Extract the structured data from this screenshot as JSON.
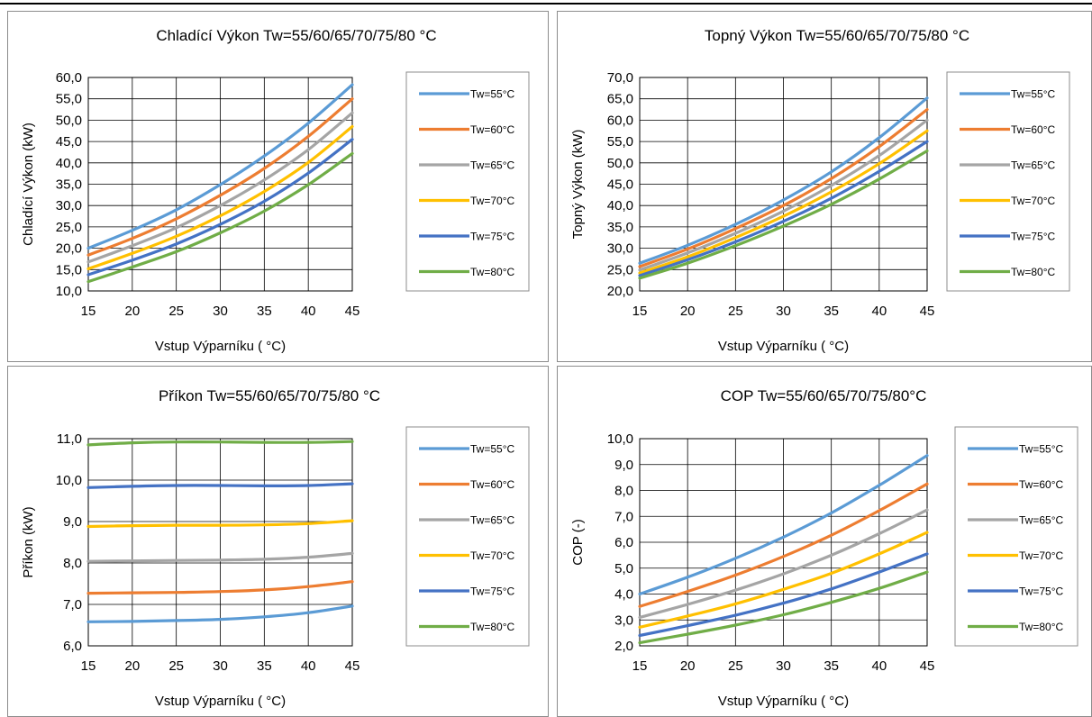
{
  "chart_data": [
    {
      "type": "line",
      "title": "Chladící Výkon Tw=55/60/65/70/75/80  °C",
      "xlabel": "Vstup Výparníku (  °C)",
      "ylabel": "Chladící Výkon (kW)",
      "xlim": [
        15,
        45
      ],
      "ylim": [
        10,
        60
      ],
      "x_ticks": [
        "15",
        "20",
        "25",
        "30",
        "35",
        "40",
        "45"
      ],
      "y_ticks": [
        "10,0",
        "15,0",
        "20,0",
        "25,0",
        "30,0",
        "35,0",
        "40,0",
        "45,0",
        "50,0",
        "55,0",
        "60,0"
      ],
      "grid": true,
      "legend_position": "right",
      "x": [
        15,
        20,
        25,
        30,
        35,
        40,
        45
      ],
      "series": [
        {
          "name": "Tw=55°C",
          "color": "#5b9bd5",
          "values": [
            20.0,
            24.2,
            29.0,
            34.9,
            41.6,
            49.3,
            58.3
          ]
        },
        {
          "name": "Tw=60°C",
          "color": "#ed7d31",
          "values": [
            18.4,
            22.3,
            26.9,
            32.4,
            38.7,
            46.2,
            55.0
          ]
        },
        {
          "name": "Tw=65°C",
          "color": "#a5a5a5",
          "values": [
            16.8,
            20.6,
            24.8,
            30.0,
            36.0,
            43.1,
            51.7
          ]
        },
        {
          "name": "Tw=70°C",
          "color": "#ffc000",
          "values": [
            15.2,
            18.8,
            22.8,
            27.6,
            33.3,
            40.1,
            48.5
          ]
        },
        {
          "name": "Tw=75°C",
          "color": "#4472c4",
          "values": [
            13.8,
            17.2,
            21.0,
            25.6,
            31.0,
            37.6,
            45.5
          ]
        },
        {
          "name": "Tw=80°C",
          "color": "#70ad47",
          "values": [
            12.2,
            15.6,
            19.2,
            23.6,
            28.7,
            34.9,
            42.2
          ]
        }
      ]
    },
    {
      "type": "line",
      "title": "Topný Výkon Tw=55/60/65/70/75/80  °C",
      "xlabel": "Vstup Výparníku (  °C)",
      "ylabel": "Topný Výkon (kW)",
      "xlim": [
        15,
        45
      ],
      "ylim": [
        20,
        70
      ],
      "x_ticks": [
        "15",
        "20",
        "25",
        "30",
        "35",
        "40",
        "45"
      ],
      "y_ticks": [
        "20,0",
        "25,0",
        "30,0",
        "35,0",
        "40,0",
        "45,0",
        "50,0",
        "55,0",
        "60,0",
        "65,0",
        "70,0"
      ],
      "grid": true,
      "legend_position": "right",
      "x": [
        15,
        20,
        25,
        30,
        35,
        40,
        45
      ],
      "series": [
        {
          "name": "Tw=55°C",
          "color": "#5b9bd5",
          "values": [
            26.5,
            30.7,
            35.6,
            41.3,
            47.9,
            55.9,
            65.2
          ]
        },
        {
          "name": "Tw=60°C",
          "color": "#ed7d31",
          "values": [
            25.7,
            29.8,
            34.6,
            40.0,
            46.3,
            53.8,
            62.5
          ]
        },
        {
          "name": "Tw=65°C",
          "color": "#a5a5a5",
          "values": [
            24.9,
            28.9,
            33.5,
            38.7,
            44.7,
            51.7,
            60.0
          ]
        },
        {
          "name": "Tw=70°C",
          "color": "#ffc000",
          "values": [
            24.2,
            28.0,
            32.5,
            37.5,
            43.2,
            49.8,
            57.5
          ]
        },
        {
          "name": "Tw=75°C",
          "color": "#4472c4",
          "values": [
            23.6,
            27.3,
            31.5,
            36.3,
            41.7,
            48.0,
            55.0
          ]
        },
        {
          "name": "Tw=80°C",
          "color": "#70ad47",
          "values": [
            23.0,
            26.5,
            30.6,
            35.2,
            40.3,
            46.2,
            52.8
          ]
        }
      ]
    },
    {
      "type": "line",
      "title": "Příkon Tw=55/60/65/70/75/80 °C",
      "xlabel": "Vstup Výparníku (  °C)",
      "ylabel": "Příkon (kW)",
      "xlim": [
        15,
        45
      ],
      "ylim": [
        6,
        11
      ],
      "x_ticks": [
        "15",
        "20",
        "25",
        "30",
        "35",
        "40",
        "45"
      ],
      "y_ticks": [
        "6,0",
        "7,0",
        "8,0",
        "9,0",
        "10,0",
        "11,0"
      ],
      "grid": true,
      "legend_position": "right",
      "x": [
        15,
        20,
        25,
        30,
        35,
        40,
        45
      ],
      "series": [
        {
          "name": "Tw=55°C",
          "color": "#5b9bd5",
          "values": [
            6.58,
            6.59,
            6.61,
            6.64,
            6.7,
            6.8,
            6.96
          ]
        },
        {
          "name": "Tw=60°C",
          "color": "#ed7d31",
          "values": [
            7.27,
            7.28,
            7.29,
            7.31,
            7.35,
            7.43,
            7.55
          ]
        },
        {
          "name": "Tw=65°C",
          "color": "#a5a5a5",
          "values": [
            8.04,
            8.05,
            8.06,
            8.07,
            8.09,
            8.14,
            8.23
          ]
        },
        {
          "name": "Tw=70°C",
          "color": "#ffc000",
          "values": [
            8.88,
            8.9,
            8.91,
            8.91,
            8.92,
            8.95,
            9.02
          ]
        },
        {
          "name": "Tw=75°C",
          "color": "#4472c4",
          "values": [
            9.82,
            9.85,
            9.87,
            9.87,
            9.86,
            9.87,
            9.91
          ]
        },
        {
          "name": "Tw=80°C",
          "color": "#70ad47",
          "values": [
            10.85,
            10.9,
            10.92,
            10.92,
            10.91,
            10.91,
            10.93
          ]
        }
      ]
    },
    {
      "type": "line",
      "title": "COP Tw=55/60/65/70/75/80°C",
      "xlabel": "Vstup Výparníku (  °C)",
      "ylabel": "COP (-)",
      "xlim": [
        15,
        45
      ],
      "ylim": [
        2,
        10
      ],
      "x_ticks": [
        "15",
        "20",
        "25",
        "30",
        "35",
        "40",
        "45"
      ],
      "y_ticks": [
        "2,0",
        "3,0",
        "4,0",
        "5,0",
        "6,0",
        "7,0",
        "8,0",
        "9,0",
        "10,0"
      ],
      "grid": true,
      "legend_position": "right",
      "x": [
        15,
        20,
        25,
        30,
        35,
        40,
        45
      ],
      "series": [
        {
          "name": "Tw=55°C",
          "color": "#5b9bd5",
          "values": [
            4.0,
            4.65,
            5.38,
            6.2,
            7.13,
            8.2,
            9.35
          ]
        },
        {
          "name": "Tw=60°C",
          "color": "#ed7d31",
          "values": [
            3.52,
            4.1,
            4.73,
            5.45,
            6.27,
            7.22,
            8.25
          ]
        },
        {
          "name": "Tw=65°C",
          "color": "#a5a5a5",
          "values": [
            3.1,
            3.6,
            4.15,
            4.78,
            5.5,
            6.33,
            7.25
          ]
        },
        {
          "name": "Tw=70°C",
          "color": "#ffc000",
          "values": [
            2.72,
            3.15,
            3.62,
            4.18,
            4.8,
            5.55,
            6.38
          ]
        },
        {
          "name": "Tw=75°C",
          "color": "#4472c4",
          "values": [
            2.4,
            2.78,
            3.18,
            3.65,
            4.2,
            4.85,
            5.55
          ]
        },
        {
          "name": "Tw=80°C",
          "color": "#70ad47",
          "values": [
            2.12,
            2.45,
            2.8,
            3.2,
            3.68,
            4.22,
            4.85
          ]
        }
      ]
    }
  ]
}
